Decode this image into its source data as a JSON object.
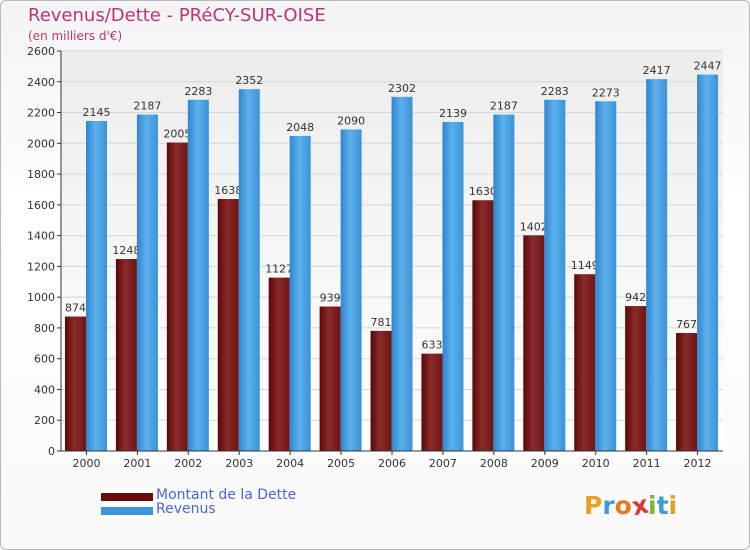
{
  "header": {
    "title": "Revenus/Dette - PRéCY-SUR-OISE",
    "subtitle": "(en milliers d'€)"
  },
  "chart_data": {
    "type": "bar",
    "title": "Revenus/Dette - PRéCY-SUR-OISE",
    "subtitle": "(en milliers d'€)",
    "categories": [
      "2000",
      "2001",
      "2002",
      "2003",
      "2004",
      "2005",
      "2006",
      "2007",
      "2008",
      "2009",
      "2010",
      "2011",
      "2012"
    ],
    "series": [
      {
        "name": "Montant de la Dette",
        "color": "#7a1a1a",
        "values": [
          874,
          1248,
          2005,
          1638,
          1127,
          939,
          781,
          633,
          1630,
          1402,
          1149,
          942,
          767
        ]
      },
      {
        "name": "Revenus",
        "color": "#4aa2e0",
        "values": [
          2145,
          2187,
          2283,
          2352,
          2048,
          2090,
          2302,
          2139,
          2187,
          2283,
          2273,
          2417,
          2447
        ]
      }
    ],
    "ylim": [
      0,
      2600
    ],
    "yticks": [
      0,
      200,
      400,
      600,
      800,
      1000,
      1200,
      1400,
      1600,
      1800,
      2000,
      2200,
      2400,
      2600
    ],
    "grid": true,
    "legend_position": "bottom-left"
  },
  "legend": {
    "items": [
      {
        "label": "Montant de la Dette",
        "color": "#6b0c0c"
      },
      {
        "label": "Revenus",
        "color": "#3d95dc"
      }
    ]
  },
  "logo": {
    "text": "Proxiti",
    "letters": [
      {
        "ch": "P",
        "color": "#e6a21c"
      },
      {
        "ch": "r",
        "color": "#3f9ad8"
      },
      {
        "ch": "o",
        "color": "#e07a1a"
      },
      {
        "ch": "x",
        "color": "#d83a3a"
      },
      {
        "ch": "i",
        "color": "#7ab832"
      },
      {
        "ch": "t",
        "color": "#3f9ad8"
      },
      {
        "ch": "i",
        "color": "#e6a21c"
      }
    ]
  }
}
